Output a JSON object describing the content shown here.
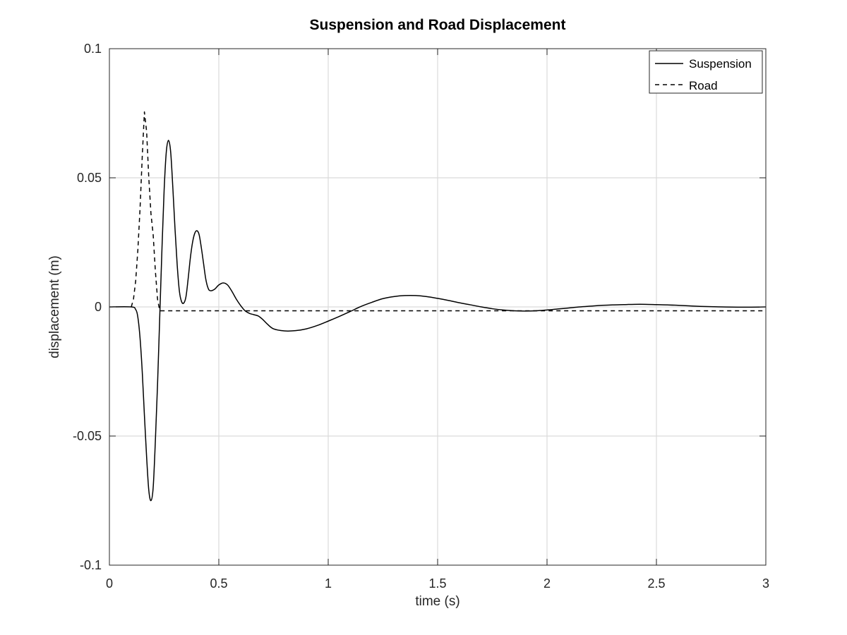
{
  "chart_data": {
    "type": "line",
    "title": "Suspension and Road Displacement",
    "xlabel": "time (s)",
    "ylabel": "displacement (m)",
    "xlim": [
      0,
      3
    ],
    "ylim": [
      -0.1,
      0.1
    ],
    "grid": true,
    "legend_location": "top-right",
    "x_ticks": [
      0,
      0.5,
      1,
      1.5,
      2,
      2.5,
      3
    ],
    "x_tick_labels": [
      "0",
      "0.5",
      "1",
      "1.5",
      "2",
      "2.5",
      "3"
    ],
    "y_ticks": [
      -0.1,
      -0.05,
      0,
      0.05,
      0.1
    ],
    "y_tick_labels": [
      "-0.1",
      "-0.05",
      "0",
      "0.05",
      "0.1"
    ],
    "series": [
      {
        "name": "Suspension",
        "line_style": "solid",
        "color": "#000000",
        "points": [
          [
            0.0,
            0.0
          ],
          [
            0.1,
            0.0
          ],
          [
            0.12,
            -0.001
          ],
          [
            0.13,
            -0.004
          ],
          [
            0.14,
            -0.012
          ],
          [
            0.15,
            -0.025
          ],
          [
            0.16,
            -0.042
          ],
          [
            0.17,
            -0.058
          ],
          [
            0.18,
            -0.071
          ],
          [
            0.19,
            -0.075
          ],
          [
            0.2,
            -0.07
          ],
          [
            0.21,
            -0.052
          ],
          [
            0.22,
            -0.03
          ],
          [
            0.23,
            -0.004
          ],
          [
            0.24,
            0.022
          ],
          [
            0.25,
            0.045
          ],
          [
            0.26,
            0.06
          ],
          [
            0.27,
            0.0645
          ],
          [
            0.28,
            0.06
          ],
          [
            0.29,
            0.046
          ],
          [
            0.3,
            0.03
          ],
          [
            0.31,
            0.016
          ],
          [
            0.32,
            0.006
          ],
          [
            0.33,
            0.002
          ],
          [
            0.34,
            0.0015
          ],
          [
            0.35,
            0.004
          ],
          [
            0.36,
            0.011
          ],
          [
            0.37,
            0.019
          ],
          [
            0.38,
            0.025
          ],
          [
            0.39,
            0.0285
          ],
          [
            0.4,
            0.0295
          ],
          [
            0.41,
            0.028
          ],
          [
            0.42,
            0.023
          ],
          [
            0.43,
            0.017
          ],
          [
            0.44,
            0.011
          ],
          [
            0.45,
            0.0075
          ],
          [
            0.46,
            0.0063
          ],
          [
            0.48,
            0.0068
          ],
          [
            0.5,
            0.0085
          ],
          [
            0.52,
            0.0093
          ],
          [
            0.54,
            0.0085
          ],
          [
            0.56,
            0.006
          ],
          [
            0.58,
            0.003
          ],
          [
            0.6,
            0.0005
          ],
          [
            0.62,
            -0.0015
          ],
          [
            0.64,
            -0.0025
          ],
          [
            0.66,
            -0.003
          ],
          [
            0.68,
            -0.0035
          ],
          [
            0.7,
            -0.0048
          ],
          [
            0.72,
            -0.0065
          ],
          [
            0.75,
            -0.0085
          ],
          [
            0.8,
            -0.0093
          ],
          [
            0.85,
            -0.0092
          ],
          [
            0.9,
            -0.0085
          ],
          [
            0.95,
            -0.0072
          ],
          [
            1.0,
            -0.0055
          ],
          [
            1.05,
            -0.0037
          ],
          [
            1.1,
            -0.0018
          ],
          [
            1.15,
            0.0002
          ],
          [
            1.2,
            0.0018
          ],
          [
            1.25,
            0.0032
          ],
          [
            1.3,
            0.004
          ],
          [
            1.35,
            0.0044
          ],
          [
            1.4,
            0.0044
          ],
          [
            1.45,
            0.004
          ],
          [
            1.5,
            0.0033
          ],
          [
            1.55,
            0.0025
          ],
          [
            1.6,
            0.0016
          ],
          [
            1.65,
            0.0008
          ],
          [
            1.7,
            0.0
          ],
          [
            1.75,
            -0.0007
          ],
          [
            1.8,
            -0.0012
          ],
          [
            1.85,
            -0.0015
          ],
          [
            1.9,
            -0.0016
          ],
          [
            1.95,
            -0.0015
          ],
          [
            2.0,
            -0.0012
          ],
          [
            2.05,
            -0.0008
          ],
          [
            2.1,
            -0.0004
          ],
          [
            2.15,
            0.0
          ],
          [
            2.2,
            0.0003
          ],
          [
            2.25,
            0.0006
          ],
          [
            2.3,
            0.0008
          ],
          [
            2.35,
            0.0009
          ],
          [
            2.4,
            0.001
          ],
          [
            2.45,
            0.001
          ],
          [
            2.5,
            0.0009
          ],
          [
            2.55,
            0.0008
          ],
          [
            2.6,
            0.0006
          ],
          [
            2.65,
            0.0004
          ],
          [
            2.7,
            0.0002
          ],
          [
            2.8,
            0.0
          ],
          [
            2.9,
            -0.0001
          ],
          [
            3.0,
            0.0
          ]
        ]
      },
      {
        "name": "Road",
        "line_style": "dashed",
        "color": "#000000",
        "points": [
          [
            0.1,
            0.0
          ],
          [
            0.11,
            0.003
          ],
          [
            0.12,
            0.01
          ],
          [
            0.13,
            0.022
          ],
          [
            0.14,
            0.038
          ],
          [
            0.15,
            0.058
          ],
          [
            0.16,
            0.0755
          ],
          [
            0.17,
            0.068
          ],
          [
            0.18,
            0.05
          ],
          [
            0.19,
            0.036
          ],
          [
            0.2,
            0.028
          ],
          [
            0.21,
            0.014
          ],
          [
            0.22,
            0.003
          ],
          [
            0.23,
            -0.0015
          ],
          [
            0.25,
            -0.0015
          ],
          [
            3.0,
            -0.0015
          ]
        ]
      }
    ]
  }
}
